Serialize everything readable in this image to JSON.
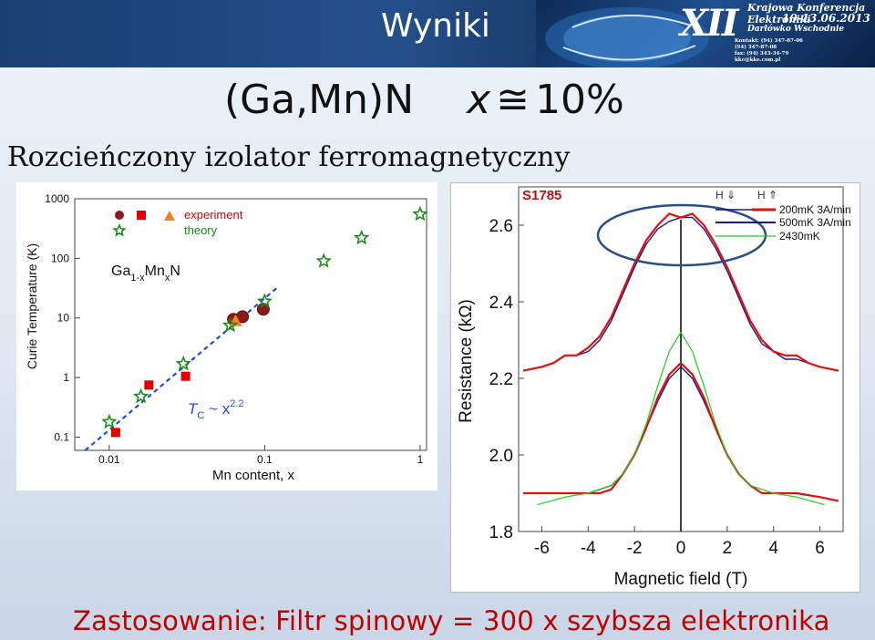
{
  "slide": {
    "title": "Wyniki",
    "subtitle_compound": "(Ga,Mn)N",
    "subtitle_x": "x",
    "subtitle_approx": "≅",
    "subtitle_value": "10%",
    "heading": "Rozcieńczony izolator ferromagnetyczny",
    "footer": "Zastosowanie: Filtr spinowy = 300 x szybsza elektronika"
  },
  "banner": {
    "line1": "Krajowa Konferencja Elektroniki",
    "numeral": "XII",
    "dates": "10-13.06.2013",
    "place": "Darłówko Wschodnie",
    "contact": [
      "Kontakt: (94) 347-87-06",
      "(94) 347-87-08",
      "fax: (94) 343-34-79",
      "kke@kke.com.pl"
    ]
  },
  "chart_data": [
    {
      "type": "scatter",
      "xlabel": "Mn content, x",
      "ylabel": "Curie Temperature  (K)",
      "xscale": "log",
      "yscale": "log",
      "xlim": [
        0.006,
        1.1
      ],
      "ylim": [
        0.06,
        1000
      ],
      "xticks": [
        "0.01",
        "0.1",
        "1"
      ],
      "yticks": [
        "0.1",
        "1",
        "10",
        "100",
        "1000"
      ],
      "annotation_compound": {
        "base1": "Ga",
        "sub1": "1-x",
        "base2": "Mn",
        "sub2": "x",
        "base3": "N"
      },
      "annotation_law": {
        "T": "T",
        "sub": "C",
        "rest": " ~ x",
        "sup": "2.2"
      },
      "colors": {
        "experiment_sphere": "#8b1a1a",
        "experiment_square": "#e00000",
        "experiment_triangle": "#f08020",
        "theory": "#1a8a1a",
        "fit": "#1f4fd0"
      },
      "legend": {
        "experiment": "experiment",
        "theory": "theory",
        "placement": "top-left"
      },
      "series": [
        {
          "name": "experiment",
          "marker": "square",
          "x": [
            0.011,
            0.018,
            0.031
          ],
          "y": [
            0.12,
            0.75,
            1.05
          ]
        },
        {
          "name": "experiment",
          "marker": "sphere",
          "x": [
            0.063,
            0.072,
            0.098
          ],
          "y": [
            9.5,
            10.5,
            14
          ]
        },
        {
          "name": "experiment",
          "marker": "triangle",
          "x": [
            0.065
          ],
          "y": [
            9
          ]
        },
        {
          "name": "theory",
          "marker": "star",
          "x": [
            0.01,
            0.016,
            0.03,
            0.06,
            0.1,
            0.24,
            0.42,
            1.0
          ],
          "y": [
            0.18,
            0.48,
            1.7,
            7.5,
            19,
            90,
            220,
            550
          ]
        },
        {
          "name": "fit",
          "marker": "dashed-line",
          "x": [
            0.007,
            0.12
          ],
          "y": [
            0.06,
            32
          ]
        }
      ]
    },
    {
      "type": "line",
      "title": "S1785",
      "xlabel": "Magnetic field (T)",
      "ylabel": "Resistance (kΩ)",
      "xlim": [
        -7,
        7
      ],
      "ylim": [
        1.8,
        2.7
      ],
      "xticks": [
        "-6",
        "-4",
        "-2",
        "0",
        "2",
        "4",
        "6"
      ],
      "yticks": [
        "1.8",
        "2.0",
        "2.2",
        "2.4",
        "2.6"
      ],
      "sweep_labels": [
        "H ⇓",
        "H ⇑"
      ],
      "colors": {
        "c200": "#e01010",
        "c500": "#1a1a8a",
        "c2430": "#22cc22"
      },
      "series": [
        {
          "name": "200mK 3A/min",
          "x": [
            -6.8,
            -6,
            -5.5,
            -5,
            -4.5,
            -4,
            -3.5,
            -3,
            -2.5,
            -2,
            -1.5,
            -1,
            -0.5,
            0,
            0.5,
            1,
            1.5,
            2,
            2.5,
            3,
            3.5,
            4,
            4.5,
            5,
            5.5,
            6,
            6.8
          ],
          "y": [
            2.22,
            2.23,
            2.24,
            2.26,
            2.26,
            2.28,
            2.31,
            2.36,
            2.43,
            2.5,
            2.56,
            2.6,
            2.63,
            2.62,
            2.63,
            2.6,
            2.55,
            2.49,
            2.42,
            2.35,
            2.3,
            2.27,
            2.26,
            2.26,
            2.24,
            2.23,
            2.22
          ]
        },
        {
          "name": "500mK 3A/min",
          "x": [
            -6.8,
            -6,
            -5.5,
            -5,
            -4.5,
            -4,
            -3.5,
            -3,
            -2.5,
            -2,
            -1.5,
            -1,
            -0.5,
            0,
            0.5,
            1,
            1.5,
            2,
            2.5,
            3,
            3.5,
            4,
            4.5,
            5,
            5.5,
            6,
            6.8
          ],
          "y": [
            2.22,
            2.23,
            2.24,
            2.26,
            2.26,
            2.27,
            2.3,
            2.35,
            2.42,
            2.49,
            2.55,
            2.59,
            2.61,
            2.62,
            2.62,
            2.59,
            2.54,
            2.48,
            2.41,
            2.34,
            2.29,
            2.27,
            2.25,
            2.25,
            2.24,
            2.23,
            2.22
          ]
        },
        {
          "name": "200mK 3A/min",
          "x": [
            -6.8,
            -6,
            -5,
            -4,
            -3.5,
            -3,
            -2.5,
            -2,
            -1.5,
            -1,
            -0.5,
            0,
            0.5,
            1,
            1.5,
            2,
            2.5,
            3,
            3.5,
            4,
            5,
            6,
            6.8
          ],
          "y": [
            1.9,
            1.9,
            1.9,
            1.9,
            1.9,
            1.91,
            1.95,
            2.0,
            2.07,
            2.15,
            2.21,
            2.24,
            2.21,
            2.15,
            2.07,
            2.0,
            1.95,
            1.92,
            1.9,
            1.9,
            1.9,
            1.89,
            1.88
          ]
        },
        {
          "name": "500mK 3A/min",
          "x": [
            -6.8,
            -6,
            -5,
            -4,
            -3.5,
            -3,
            -2.5,
            -2,
            -1.5,
            -1,
            -0.5,
            0,
            0.5,
            1,
            1.5,
            2,
            2.5,
            3,
            3.5,
            4,
            5,
            6,
            6.8
          ],
          "y": [
            1.9,
            1.9,
            1.9,
            1.9,
            1.91,
            1.92,
            1.95,
            2.0,
            2.07,
            2.14,
            2.2,
            2.23,
            2.2,
            2.14,
            2.07,
            2.0,
            1.95,
            1.92,
            1.9,
            1.9,
            1.9,
            1.89,
            1.88
          ]
        },
        {
          "name": "2430mK",
          "x": [
            -6.2,
            -5,
            -4,
            -3,
            -2.5,
            -2,
            -1.5,
            -1,
            -0.5,
            0,
            0.5,
            1,
            1.5,
            2,
            2.5,
            3,
            4,
            5,
            6.2
          ],
          "y": [
            1.87,
            1.89,
            1.9,
            1.92,
            1.95,
            2.0,
            2.08,
            2.18,
            2.27,
            2.32,
            2.27,
            2.18,
            2.08,
            2.0,
            1.95,
            1.92,
            1.9,
            1.89,
            1.87
          ]
        }
      ]
    }
  ]
}
